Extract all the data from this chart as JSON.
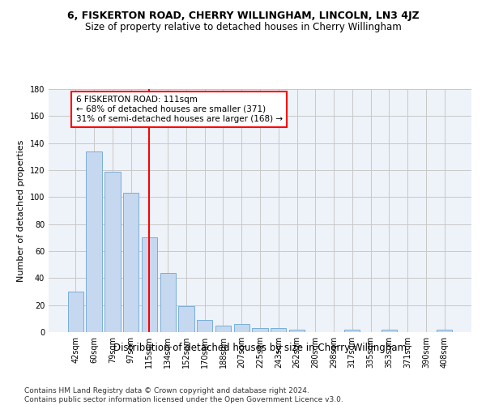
{
  "title": "6, FISKERTON ROAD, CHERRY WILLINGHAM, LINCOLN, LN3 4JZ",
  "subtitle": "Size of property relative to detached houses in Cherry Willingham",
  "xlabel": "Distribution of detached houses by size in Cherry Willingham",
  "ylabel": "Number of detached properties",
  "categories": [
    "42sqm",
    "60sqm",
    "79sqm",
    "97sqm",
    "115sqm",
    "134sqm",
    "152sqm",
    "170sqm",
    "188sqm",
    "207sqm",
    "225sqm",
    "243sqm",
    "262sqm",
    "280sqm",
    "298sqm",
    "317sqm",
    "335sqm",
    "353sqm",
    "371sqm",
    "390sqm",
    "408sqm"
  ],
  "values": [
    30,
    134,
    119,
    103,
    70,
    44,
    19,
    9,
    5,
    6,
    3,
    3,
    2,
    0,
    0,
    2,
    0,
    2,
    0,
    0,
    2
  ],
  "bar_color": "#c5d8f0",
  "bar_edge_color": "#7aaed6",
  "vline_x": 4,
  "vline_color": "red",
  "annotation_text": "6 FISKERTON ROAD: 111sqm\n← 68% of detached houses are smaller (371)\n31% of semi-detached houses are larger (168) →",
  "annotation_box_color": "white",
  "annotation_box_edge_color": "red",
  "ylim": [
    0,
    180
  ],
  "yticks": [
    0,
    20,
    40,
    60,
    80,
    100,
    120,
    140,
    160,
    180
  ],
  "grid_color": "#c8c8c8",
  "bg_color": "#eef2f9",
  "footer_line1": "Contains HM Land Registry data © Crown copyright and database right 2024.",
  "footer_line2": "Contains public sector information licensed under the Open Government Licence v3.0.",
  "title_fontsize": 9,
  "subtitle_fontsize": 8.5,
  "xlabel_fontsize": 8.5,
  "ylabel_fontsize": 8,
  "tick_fontsize": 7,
  "footer_fontsize": 6.5,
  "annotation_fontsize": 7.5
}
